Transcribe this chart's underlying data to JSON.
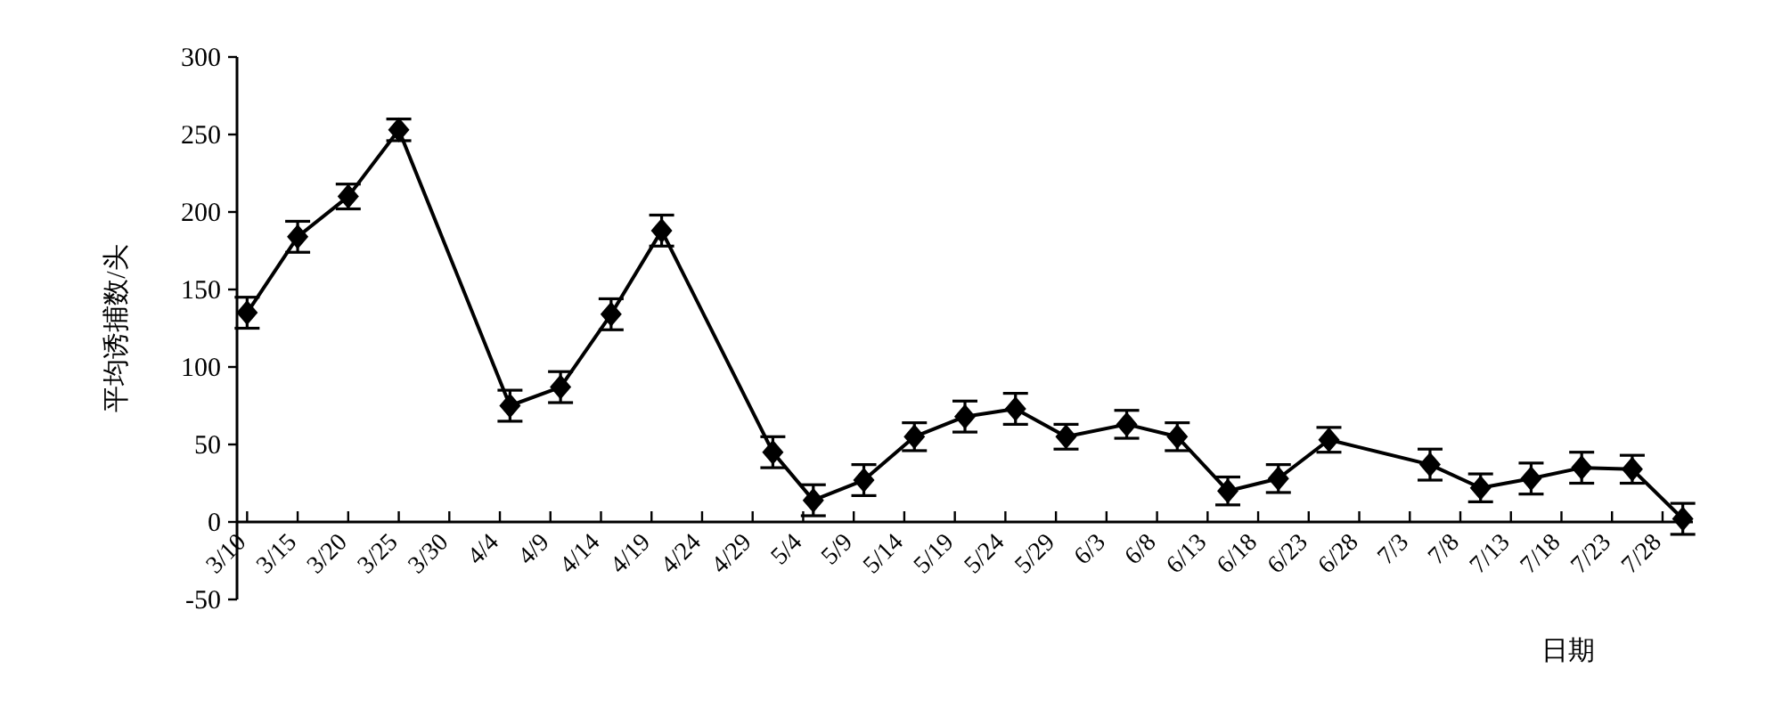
{
  "chart_data": {
    "type": "line",
    "xlabel": "日期",
    "ylabel": "平均诱捕数/头",
    "color": "#000000",
    "marker": "diamond",
    "line_style": "solid",
    "grid": false,
    "x": [
      "--03-10",
      "--03-15",
      "--03-20",
      "--03-25",
      "--04-05",
      "--04-10",
      "--04-15",
      "--04-20",
      "--05-01",
      "--05-05",
      "--05-10",
      "--05-15",
      "--05-20",
      "--05-25",
      "--05-30",
      "--06-05",
      "--06-10",
      "--06-15",
      "--06-20",
      "--06-25",
      "--07-05",
      "--07-10",
      "--07-15",
      "--07-20",
      "--07-25",
      "--07-30"
    ],
    "values": [
      135,
      184,
      210,
      253,
      75,
      87,
      134,
      188,
      45,
      14,
      27,
      55,
      68,
      73,
      55,
      63,
      55,
      20,
      28,
      53,
      37,
      22,
      28,
      35,
      34,
      2
    ],
    "errors": [
      10,
      10,
      8,
      7,
      10,
      10,
      10,
      10,
      10,
      10,
      10,
      9,
      10,
      10,
      8,
      9,
      9,
      9,
      9,
      8,
      10,
      9,
      10,
      10,
      9,
      10
    ],
    "ylim": [
      -50,
      300
    ],
    "yticks": [
      -50,
      0,
      50,
      100,
      150,
      200,
      250,
      300
    ],
    "xlim": [
      "--03-09",
      "--07-31"
    ],
    "xticks": [
      {
        "value": "--03-10",
        "label": "3/10"
      },
      {
        "value": "--03-15",
        "label": "3/15"
      },
      {
        "value": "--03-20",
        "label": "3/20"
      },
      {
        "value": "--03-25",
        "label": "3/25"
      },
      {
        "value": "--03-30",
        "label": "3/30"
      },
      {
        "value": "--04-04",
        "label": "4/4"
      },
      {
        "value": "--04-09",
        "label": "4/9"
      },
      {
        "value": "--04-14",
        "label": "4/14"
      },
      {
        "value": "--04-19",
        "label": "4/19"
      },
      {
        "value": "--04-24",
        "label": "4/24"
      },
      {
        "value": "--04-29",
        "label": "4/29"
      },
      {
        "value": "--05-04",
        "label": "5/4"
      },
      {
        "value": "--05-09",
        "label": "5/9"
      },
      {
        "value": "--05-14",
        "label": "5/14"
      },
      {
        "value": "--05-19",
        "label": "5/19"
      },
      {
        "value": "--05-24",
        "label": "5/24"
      },
      {
        "value": "--05-29",
        "label": "5/29"
      },
      {
        "value": "--06-03",
        "label": "6/3"
      },
      {
        "value": "--06-08",
        "label": "6/8"
      },
      {
        "value": "--06-13",
        "label": "6/13"
      },
      {
        "value": "--06-18",
        "label": "6/18"
      },
      {
        "value": "--06-23",
        "label": "6/23"
      },
      {
        "value": "--06-28",
        "label": "6/28"
      },
      {
        "value": "--07-03",
        "label": "7/3"
      },
      {
        "value": "--07-08",
        "label": "7/8"
      },
      {
        "value": "--07-13",
        "label": "7/13"
      },
      {
        "value": "--07-18",
        "label": "7/18"
      },
      {
        "value": "--07-23",
        "label": "7/23"
      },
      {
        "value": "--07-28",
        "label": "7/28"
      }
    ]
  }
}
